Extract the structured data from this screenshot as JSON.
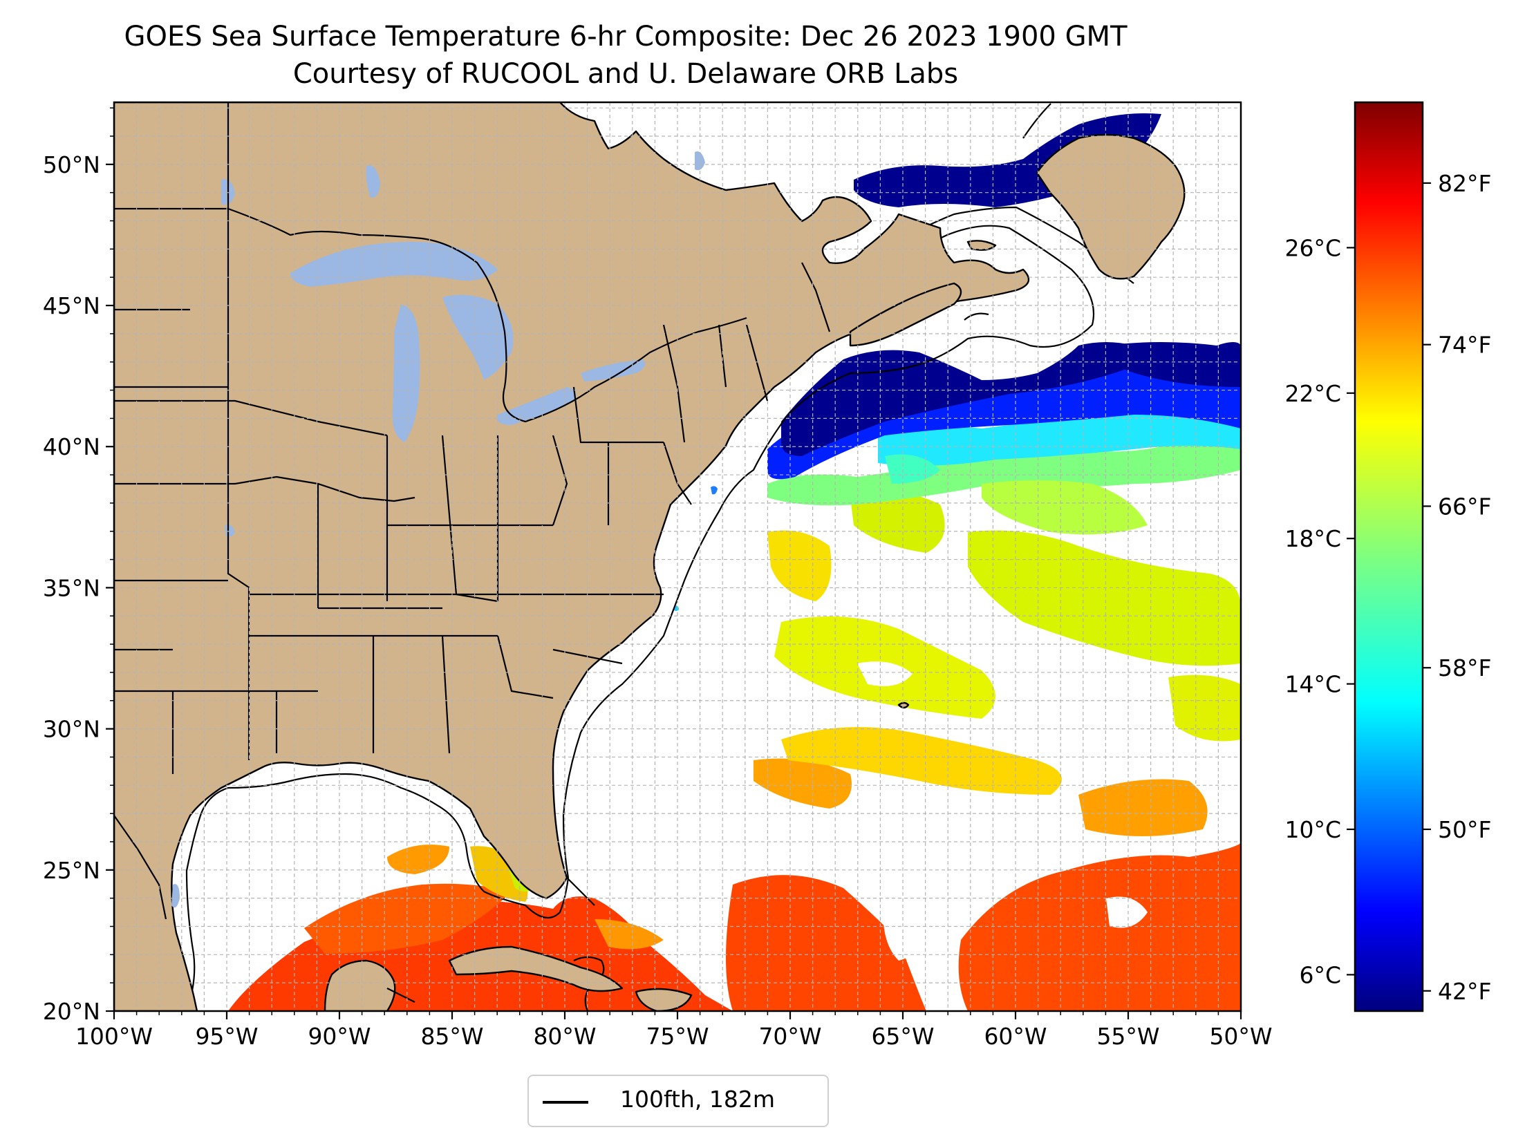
{
  "title": {
    "line1": "GOES Sea Surface Temperature 6-hr Composite: Dec 26 2023 1900 GMT",
    "line2": "Courtesy of RUCOOL and U. Delaware ORB Labs"
  },
  "map": {
    "lon_range": [
      -100,
      -50
    ],
    "lat_range": [
      20,
      52.2
    ],
    "x_ticks": [
      "100°W",
      "95°W",
      "90°W",
      "85°W",
      "80°W",
      "75°W",
      "70°W",
      "65°W",
      "60°W",
      "55°W",
      "50°W"
    ],
    "y_ticks": [
      "20°N",
      "25°N",
      "30°N",
      "35°N",
      "40°N",
      "45°N",
      "50°N"
    ],
    "land_color": "#d2b48c",
    "lake_color": "#9ab8e3",
    "grid": true,
    "grid_step_degrees": 1
  },
  "colorbar": {
    "colormap": "jet",
    "celsius_range": [
      5.0,
      30.0
    ],
    "celsius_ticks": [
      "6°C",
      "10°C",
      "14°C",
      "18°C",
      "22°C",
      "26°C"
    ],
    "fahrenheit_ticks": [
      "42°F",
      "50°F",
      "58°F",
      "66°F",
      "74°F",
      "82°F"
    ]
  },
  "legend": {
    "label": "100fth, 182m",
    "line_color": "#000000"
  }
}
